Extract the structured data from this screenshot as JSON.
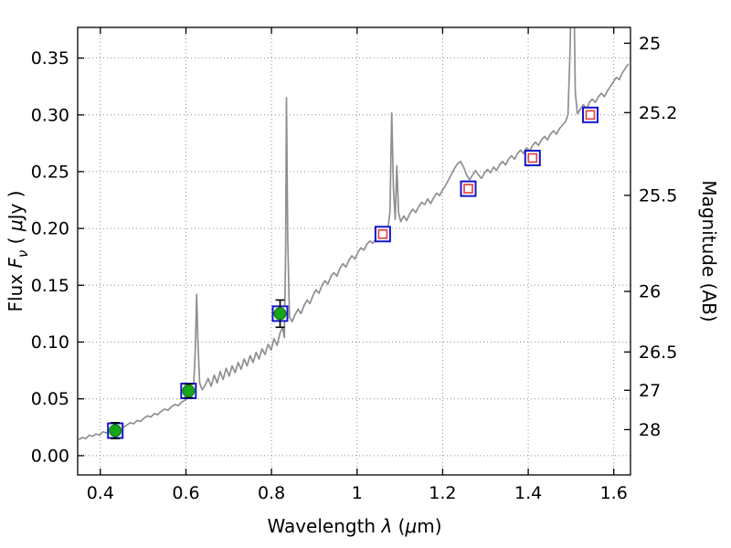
{
  "figure": {
    "background": "#ffffff",
    "xlabel_parts": [
      {
        "t": "Wavelength  ",
        "i": false
      },
      {
        "t": "λ",
        "i": true
      },
      {
        "t": " (",
        "i": false
      },
      {
        "t": "μ",
        "i": true
      },
      {
        "t": "m)",
        "i": false
      }
    ],
    "ylabel_left_parts": [
      {
        "t": "Flux  ",
        "i": false
      },
      {
        "t": "F",
        "i": true
      },
      {
        "t": "ν",
        "i": true,
        "sub": true
      },
      {
        "t": "  ( ",
        "i": false
      },
      {
        "t": "μ",
        "i": true
      },
      {
        "t": "Jy )",
        "i": false
      }
    ],
    "ylabel_right": "Magnitude (AB)"
  },
  "chart_data": {
    "type": "line",
    "title": "",
    "xlabel": "Wavelength λ (μm)",
    "ylabel": "Flux Fν (μJy)",
    "ylabel_right": "Magnitude (AB)",
    "xlim": [
      0.347,
      1.639
    ],
    "ylim": [
      -0.017,
      0.377
    ],
    "grid": true,
    "legend": false,
    "x_ticks": [
      {
        "label": "0.4",
        "value": 0.4
      },
      {
        "label": "0.6",
        "value": 0.6
      },
      {
        "label": "0.8",
        "value": 0.8
      },
      {
        "label": "1",
        "value": 1.0
      },
      {
        "label": "1.2",
        "value": 1.2
      },
      {
        "label": "1.4",
        "value": 1.4
      },
      {
        "label": "1.6",
        "value": 1.6
      }
    ],
    "y_ticks_left": [
      {
        "label": "0.00",
        "value": 0.0
      },
      {
        "label": "0.05",
        "value": 0.05
      },
      {
        "label": "0.10",
        "value": 0.1
      },
      {
        "label": "0.15",
        "value": 0.15
      },
      {
        "label": "0.20",
        "value": 0.2
      },
      {
        "label": "0.25",
        "value": 0.25
      },
      {
        "label": "0.30",
        "value": 0.3
      },
      {
        "label": "0.35",
        "value": 0.35
      }
    ],
    "y_ticks_right": [
      {
        "label": "25",
        "flux": 0.3631
      },
      {
        "label": "25.2",
        "flux": 0.302
      },
      {
        "label": "25.5",
        "flux": 0.2291
      },
      {
        "label": "26",
        "flux": 0.1445
      },
      {
        "label": "26.5",
        "flux": 0.0912
      },
      {
        "label": "27",
        "flux": 0.0575
      },
      {
        "label": "28",
        "flux": 0.0229
      }
    ],
    "colors": {
      "spectrum": "#8f8f8f",
      "square": "#1414cc",
      "inner_square": "#e04545",
      "circle": "#17a617",
      "circle_edge": "#0b760b",
      "errorbar": "#000000"
    },
    "points": [
      {
        "x": 0.435,
        "y": 0.022,
        "yerr": 0.007,
        "detected": true
      },
      {
        "x": 0.606,
        "y": 0.057,
        "yerr": 0.006,
        "detected": true
      },
      {
        "x": 0.82,
        "y": 0.125,
        "yerr": 0.012,
        "detected": true
      },
      {
        "x": 1.06,
        "y": 0.195,
        "detected": false
      },
      {
        "x": 1.26,
        "y": 0.235,
        "detected": false
      },
      {
        "x": 1.41,
        "y": 0.262,
        "detected": false
      },
      {
        "x": 1.545,
        "y": 0.3,
        "detected": false
      }
    ],
    "spectrum": [
      [
        0.35,
        0.014
      ],
      [
        0.358,
        0.016
      ],
      [
        0.366,
        0.015
      ],
      [
        0.374,
        0.018
      ],
      [
        0.382,
        0.017
      ],
      [
        0.39,
        0.019
      ],
      [
        0.398,
        0.018
      ],
      [
        0.406,
        0.021
      ],
      [
        0.414,
        0.02
      ],
      [
        0.422,
        0.022
      ],
      [
        0.43,
        0.024
      ],
      [
        0.438,
        0.023
      ],
      [
        0.446,
        0.026
      ],
      [
        0.454,
        0.025
      ],
      [
        0.462,
        0.027
      ],
      [
        0.47,
        0.029
      ],
      [
        0.478,
        0.028
      ],
      [
        0.486,
        0.031
      ],
      [
        0.494,
        0.03
      ],
      [
        0.502,
        0.033
      ],
      [
        0.51,
        0.035
      ],
      [
        0.518,
        0.034
      ],
      [
        0.526,
        0.037
      ],
      [
        0.534,
        0.036
      ],
      [
        0.542,
        0.039
      ],
      [
        0.55,
        0.041
      ],
      [
        0.558,
        0.04
      ],
      [
        0.566,
        0.043
      ],
      [
        0.574,
        0.045
      ],
      [
        0.582,
        0.044
      ],
      [
        0.59,
        0.047
      ],
      [
        0.598,
        0.049
      ],
      [
        0.606,
        0.051
      ],
      [
        0.612,
        0.053
      ],
      [
        0.618,
        0.06
      ],
      [
        0.622,
        0.095
      ],
      [
        0.625,
        0.142
      ],
      [
        0.628,
        0.1
      ],
      [
        0.632,
        0.064
      ],
      [
        0.638,
        0.058
      ],
      [
        0.645,
        0.062
      ],
      [
        0.652,
        0.068
      ],
      [
        0.659,
        0.061
      ],
      [
        0.666,
        0.071
      ],
      [
        0.673,
        0.064
      ],
      [
        0.68,
        0.074
      ],
      [
        0.687,
        0.067
      ],
      [
        0.694,
        0.077
      ],
      [
        0.701,
        0.07
      ],
      [
        0.708,
        0.079
      ],
      [
        0.715,
        0.073
      ],
      [
        0.722,
        0.082
      ],
      [
        0.729,
        0.076
      ],
      [
        0.736,
        0.085
      ],
      [
        0.743,
        0.079
      ],
      [
        0.75,
        0.088
      ],
      [
        0.757,
        0.082
      ],
      [
        0.764,
        0.091
      ],
      [
        0.771,
        0.085
      ],
      [
        0.778,
        0.094
      ],
      [
        0.785,
        0.089
      ],
      [
        0.792,
        0.098
      ],
      [
        0.799,
        0.093
      ],
      [
        0.806,
        0.103
      ],
      [
        0.813,
        0.097
      ],
      [
        0.82,
        0.108
      ],
      [
        0.826,
        0.113
      ],
      [
        0.83,
        0.104
      ],
      [
        0.833,
        0.18
      ],
      [
        0.835,
        0.315
      ],
      [
        0.838,
        0.19
      ],
      [
        0.842,
        0.122
      ],
      [
        0.848,
        0.118
      ],
      [
        0.855,
        0.124
      ],
      [
        0.862,
        0.129
      ],
      [
        0.869,
        0.125
      ],
      [
        0.876,
        0.132
      ],
      [
        0.883,
        0.137
      ],
      [
        0.89,
        0.134
      ],
      [
        0.897,
        0.141
      ],
      [
        0.904,
        0.146
      ],
      [
        0.911,
        0.143
      ],
      [
        0.918,
        0.15
      ],
      [
        0.925,
        0.154
      ],
      [
        0.932,
        0.151
      ],
      [
        0.939,
        0.158
      ],
      [
        0.946,
        0.161
      ],
      [
        0.953,
        0.158
      ],
      [
        0.96,
        0.165
      ],
      [
        0.967,
        0.169
      ],
      [
        0.974,
        0.166
      ],
      [
        0.981,
        0.172
      ],
      [
        0.988,
        0.176
      ],
      [
        0.995,
        0.173
      ],
      [
        1.002,
        0.179
      ],
      [
        1.009,
        0.183
      ],
      [
        1.016,
        0.181
      ],
      [
        1.023,
        0.186
      ],
      [
        1.03,
        0.189
      ],
      [
        1.037,
        0.187
      ],
      [
        1.044,
        0.191
      ],
      [
        1.051,
        0.194
      ],
      [
        1.058,
        0.192
      ],
      [
        1.065,
        0.196
      ],
      [
        1.072,
        0.199
      ],
      [
        1.077,
        0.215
      ],
      [
        1.081,
        0.302
      ],
      [
        1.085,
        0.235
      ],
      [
        1.089,
        0.208
      ],
      [
        1.093,
        0.255
      ],
      [
        1.097,
        0.214
      ],
      [
        1.102,
        0.206
      ],
      [
        1.109,
        0.211
      ],
      [
        1.116,
        0.207
      ],
      [
        1.123,
        0.213
      ],
      [
        1.13,
        0.217
      ],
      [
        1.137,
        0.214
      ],
      [
        1.144,
        0.219
      ],
      [
        1.151,
        0.223
      ],
      [
        1.158,
        0.221
      ],
      [
        1.165,
        0.226
      ],
      [
        1.172,
        0.222
      ],
      [
        1.179,
        0.227
      ],
      [
        1.186,
        0.231
      ],
      [
        1.193,
        0.229
      ],
      [
        1.2,
        0.234
      ],
      [
        1.207,
        0.238
      ],
      [
        1.214,
        0.243
      ],
      [
        1.221,
        0.248
      ],
      [
        1.228,
        0.253
      ],
      [
        1.235,
        0.257
      ],
      [
        1.242,
        0.259
      ],
      [
        1.249,
        0.254
      ],
      [
        1.256,
        0.247
      ],
      [
        1.263,
        0.243
      ],
      [
        1.27,
        0.247
      ],
      [
        1.277,
        0.251
      ],
      [
        1.284,
        0.247
      ],
      [
        1.291,
        0.244
      ],
      [
        1.298,
        0.249
      ],
      [
        1.305,
        0.252
      ],
      [
        1.312,
        0.249
      ],
      [
        1.319,
        0.254
      ],
      [
        1.326,
        0.251
      ],
      [
        1.333,
        0.256
      ],
      [
        1.34,
        0.259
      ],
      [
        1.347,
        0.256
      ],
      [
        1.354,
        0.261
      ],
      [
        1.361,
        0.264
      ],
      [
        1.368,
        0.261
      ],
      [
        1.375,
        0.266
      ],
      [
        1.382,
        0.269
      ],
      [
        1.389,
        0.266
      ],
      [
        1.396,
        0.271
      ],
      [
        1.403,
        0.268
      ],
      [
        1.41,
        0.273
      ],
      [
        1.417,
        0.276
      ],
      [
        1.424,
        0.273
      ],
      [
        1.431,
        0.278
      ],
      [
        1.438,
        0.281
      ],
      [
        1.445,
        0.278
      ],
      [
        1.452,
        0.283
      ],
      [
        1.459,
        0.286
      ],
      [
        1.466,
        0.283
      ],
      [
        1.473,
        0.288
      ],
      [
        1.48,
        0.291
      ],
      [
        1.487,
        0.294
      ],
      [
        1.493,
        0.3
      ],
      [
        1.498,
        0.36
      ],
      [
        1.502,
        0.46
      ],
      [
        1.506,
        0.43
      ],
      [
        1.51,
        0.32
      ],
      [
        1.515,
        0.301
      ],
      [
        1.522,
        0.305
      ],
      [
        1.529,
        0.309
      ],
      [
        1.536,
        0.305
      ],
      [
        1.543,
        0.311
      ],
      [
        1.55,
        0.314
      ],
      [
        1.557,
        0.311
      ],
      [
        1.564,
        0.316
      ],
      [
        1.571,
        0.319
      ],
      [
        1.578,
        0.316
      ],
      [
        1.585,
        0.321
      ],
      [
        1.592,
        0.325
      ],
      [
        1.599,
        0.329
      ],
      [
        1.606,
        0.333
      ],
      [
        1.613,
        0.331
      ],
      [
        1.62,
        0.337
      ],
      [
        1.627,
        0.341
      ],
      [
        1.634,
        0.345
      ]
    ]
  }
}
